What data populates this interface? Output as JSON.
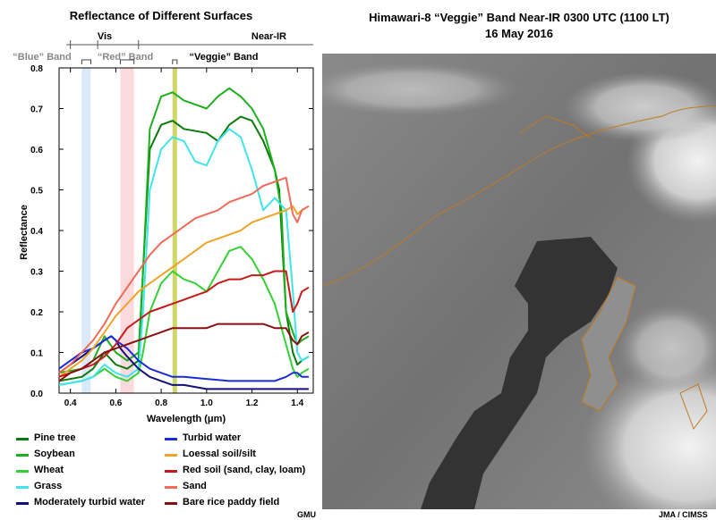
{
  "left_panel": {
    "title": "Reflectance of Different Surfaces",
    "regions": {
      "vis": "Vis",
      "near_ir": "Near-IR"
    },
    "band_labels": {
      "blue": "“Blue” Band",
      "red": "“Red” Band",
      "veggie": "“Veggie” Band"
    },
    "credit": "GMU"
  },
  "right_panel": {
    "title_line1": "Himawari-8 “Veggie” Band Near-IR  0300 UTC  (1100 LT)",
    "title_line2": "16 May 2016",
    "credit": "JMA / CIMSS"
  },
  "colors": {
    "blue_band": "#dbe9f9",
    "red_band": "#fbd9dd",
    "veggie_band": "#cfd76a"
  },
  "chart_data": {
    "type": "line",
    "title": "Reflectance of Different Surfaces",
    "xlabel": "Wavelength (μm)",
    "ylabel": "Reflectance",
    "xlim": [
      0.35,
      1.47
    ],
    "ylim": [
      0,
      0.8
    ],
    "xticks": [
      "0.4",
      "0.6",
      "0.8",
      "1.0",
      "1.2",
      "1.4"
    ],
    "yticks": [
      "0.0",
      "0.1",
      "0.2",
      "0.3",
      "0.4",
      "0.5",
      "0.6",
      "0.7",
      "0.8"
    ],
    "grid": false,
    "bands": [
      {
        "name": "Blue",
        "x0": 0.45,
        "x1": 0.49
      },
      {
        "name": "Red",
        "x0": 0.62,
        "x1": 0.68
      },
      {
        "name": "Veggie",
        "x0": 0.85,
        "x1": 0.87
      }
    ],
    "series": [
      {
        "name": "Pine tree",
        "color": "#0a7a0a",
        "x": [
          0.35,
          0.45,
          0.5,
          0.55,
          0.6,
          0.65,
          0.7,
          0.72,
          0.75,
          0.8,
          0.85,
          0.9,
          1.0,
          1.05,
          1.1,
          1.15,
          1.2,
          1.25,
          1.3,
          1.32,
          1.35,
          1.38,
          1.4,
          1.42,
          1.45
        ],
        "y": [
          0.03,
          0.04,
          0.06,
          0.1,
          0.07,
          0.06,
          0.08,
          0.3,
          0.6,
          0.66,
          0.67,
          0.65,
          0.64,
          0.62,
          0.66,
          0.68,
          0.67,
          0.62,
          0.55,
          0.5,
          0.2,
          0.1,
          0.07,
          0.08,
          0.09
        ]
      },
      {
        "name": "Soybean",
        "color": "#1cb01c",
        "x": [
          0.35,
          0.45,
          0.5,
          0.55,
          0.6,
          0.65,
          0.7,
          0.72,
          0.75,
          0.8,
          0.85,
          0.9,
          0.95,
          1.0,
          1.05,
          1.1,
          1.15,
          1.2,
          1.25,
          1.3,
          1.33,
          1.35,
          1.38,
          1.4,
          1.42,
          1.45
        ],
        "y": [
          0.05,
          0.06,
          0.08,
          0.14,
          0.1,
          0.08,
          0.1,
          0.3,
          0.65,
          0.73,
          0.74,
          0.72,
          0.71,
          0.7,
          0.73,
          0.75,
          0.73,
          0.7,
          0.65,
          0.55,
          0.45,
          0.2,
          0.15,
          0.12,
          0.13,
          0.14
        ]
      },
      {
        "name": "Wheat",
        "color": "#34d034",
        "x": [
          0.35,
          0.45,
          0.5,
          0.55,
          0.6,
          0.65,
          0.7,
          0.72,
          0.75,
          0.8,
          0.85,
          0.9,
          0.95,
          1.0,
          1.05,
          1.1,
          1.15,
          1.2,
          1.25,
          1.3,
          1.35,
          1.38,
          1.4,
          1.42,
          1.45
        ],
        "y": [
          0.02,
          0.03,
          0.04,
          0.06,
          0.04,
          0.03,
          0.05,
          0.1,
          0.2,
          0.27,
          0.3,
          0.28,
          0.27,
          0.25,
          0.3,
          0.35,
          0.36,
          0.33,
          0.28,
          0.22,
          0.12,
          0.06,
          0.04,
          0.05,
          0.06
        ]
      },
      {
        "name": "Grass",
        "color": "#3fe4ec",
        "x": [
          0.35,
          0.45,
          0.5,
          0.55,
          0.6,
          0.65,
          0.7,
          0.72,
          0.75,
          0.8,
          0.85,
          0.9,
          0.95,
          1.0,
          1.05,
          1.1,
          1.15,
          1.2,
          1.25,
          1.3,
          1.35,
          1.38,
          1.4,
          1.42,
          1.45
        ],
        "y": [
          0.02,
          0.03,
          0.04,
          0.07,
          0.05,
          0.04,
          0.06,
          0.2,
          0.5,
          0.6,
          0.63,
          0.62,
          0.57,
          0.56,
          0.62,
          0.65,
          0.63,
          0.55,
          0.45,
          0.48,
          0.45,
          0.25,
          0.1,
          0.08,
          0.09
        ]
      },
      {
        "name": "Moderately turbid water",
        "color": "#10107a",
        "x": [
          0.35,
          0.4,
          0.45,
          0.5,
          0.55,
          0.58,
          0.6,
          0.62,
          0.65,
          0.7,
          0.75,
          0.8,
          0.85,
          0.9,
          1.0,
          1.1,
          1.2,
          1.3,
          1.35,
          1.4,
          1.42,
          1.45
        ],
        "y": [
          0.05,
          0.07,
          0.09,
          0.11,
          0.13,
          0.14,
          0.13,
          0.11,
          0.09,
          0.06,
          0.04,
          0.03,
          0.02,
          0.02,
          0.01,
          0.01,
          0.01,
          0.01,
          0.01,
          0.01,
          0.01,
          0.01
        ]
      },
      {
        "name": "Turbid water",
        "color": "#1a2bd8",
        "x": [
          0.35,
          0.4,
          0.45,
          0.5,
          0.55,
          0.58,
          0.6,
          0.65,
          0.7,
          0.75,
          0.8,
          0.85,
          0.9,
          1.0,
          1.1,
          1.2,
          1.3,
          1.35,
          1.38,
          1.4,
          1.42,
          1.45
        ],
        "y": [
          0.06,
          0.08,
          0.1,
          0.11,
          0.13,
          0.14,
          0.13,
          0.11,
          0.08,
          0.06,
          0.05,
          0.04,
          0.04,
          0.035,
          0.03,
          0.03,
          0.03,
          0.04,
          0.05,
          0.05,
          0.04,
          0.04
        ]
      },
      {
        "name": "Loessal soil/silt",
        "color": "#f0a326",
        "x": [
          0.35,
          0.4,
          0.45,
          0.5,
          0.55,
          0.6,
          0.65,
          0.7,
          0.75,
          0.8,
          0.85,
          0.9,
          0.95,
          1.0,
          1.05,
          1.1,
          1.15,
          1.2,
          1.25,
          1.3,
          1.35,
          1.38,
          1.4,
          1.42,
          1.45
        ],
        "y": [
          0.04,
          0.06,
          0.08,
          0.11,
          0.15,
          0.19,
          0.22,
          0.25,
          0.27,
          0.29,
          0.31,
          0.33,
          0.35,
          0.37,
          0.38,
          0.39,
          0.4,
          0.42,
          0.43,
          0.44,
          0.45,
          0.46,
          0.44,
          0.45,
          0.46
        ]
      },
      {
        "name": "Red soil (sand, clay, loam)",
        "color": "#c41a1a",
        "x": [
          0.35,
          0.4,
          0.45,
          0.5,
          0.55,
          0.6,
          0.65,
          0.7,
          0.75,
          0.8,
          0.85,
          0.9,
          0.95,
          1.0,
          1.05,
          1.1,
          1.15,
          1.2,
          1.25,
          1.3,
          1.35,
          1.38,
          1.4,
          1.42,
          1.45
        ],
        "y": [
          0.04,
          0.05,
          0.06,
          0.07,
          0.09,
          0.12,
          0.16,
          0.18,
          0.2,
          0.21,
          0.22,
          0.23,
          0.24,
          0.25,
          0.27,
          0.28,
          0.28,
          0.29,
          0.29,
          0.3,
          0.3,
          0.2,
          0.22,
          0.25,
          0.26
        ]
      },
      {
        "name": "Sand",
        "color": "#ef6b58",
        "x": [
          0.35,
          0.4,
          0.45,
          0.5,
          0.55,
          0.6,
          0.65,
          0.7,
          0.75,
          0.8,
          0.85,
          0.9,
          0.95,
          1.0,
          1.05,
          1.1,
          1.15,
          1.2,
          1.25,
          1.3,
          1.35,
          1.38,
          1.4,
          1.42,
          1.45
        ],
        "y": [
          0.05,
          0.07,
          0.1,
          0.13,
          0.17,
          0.22,
          0.26,
          0.3,
          0.34,
          0.37,
          0.39,
          0.41,
          0.43,
          0.44,
          0.45,
          0.47,
          0.48,
          0.49,
          0.51,
          0.52,
          0.53,
          0.44,
          0.42,
          0.45,
          0.46
        ]
      },
      {
        "name": "Bare rice paddy field",
        "color": "#8b0e0e",
        "x": [
          0.35,
          0.4,
          0.45,
          0.5,
          0.55,
          0.6,
          0.65,
          0.7,
          0.75,
          0.8,
          0.85,
          0.9,
          0.95,
          1.0,
          1.05,
          1.1,
          1.15,
          1.2,
          1.25,
          1.3,
          1.35,
          1.38,
          1.4,
          1.42,
          1.45
        ],
        "y": [
          0.03,
          0.05,
          0.06,
          0.08,
          0.1,
          0.11,
          0.12,
          0.13,
          0.14,
          0.15,
          0.16,
          0.16,
          0.16,
          0.16,
          0.17,
          0.17,
          0.17,
          0.17,
          0.17,
          0.16,
          0.16,
          0.13,
          0.12,
          0.14,
          0.15
        ]
      }
    ]
  }
}
